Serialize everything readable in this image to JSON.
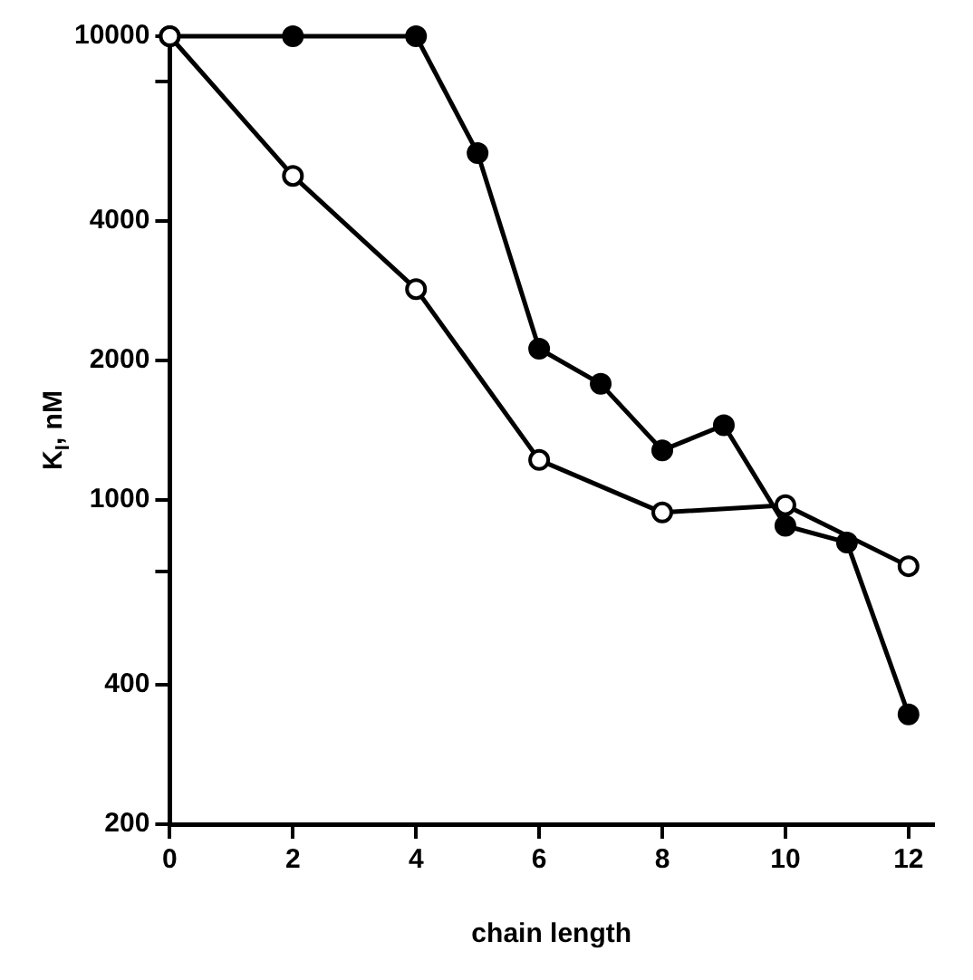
{
  "chart_data": {
    "type": "line",
    "xlabel": "chain length",
    "ylabel": "K$_{I}$, nM",
    "log": "y",
    "xlim": [
      0,
      12.4
    ],
    "xticks": [
      0,
      2,
      4,
      6,
      8,
      10,
      12
    ],
    "ylim": [
      200,
      10000
    ],
    "yticks": [
      200,
      400,
      {
        "value": 700,
        "label": null
      },
      1000,
      2000,
      4000,
      {
        "value": 8000,
        "label": null
      },
      10000
    ],
    "grid": false,
    "legend": false,
    "marker": "circle",
    "line_style": "solid",
    "series": [
      {
        "color": "#000000",
        "x": [
          0,
          2,
          4,
          6,
          8,
          10,
          12
        ],
        "values": [
          10000,
          5000,
          2850,
          1220,
          940,
          975,
          720
        ]
      },
      {
        "color": "#000000",
        "x": [
          0,
          2,
          4,
          5,
          6,
          7,
          8,
          9,
          10,
          11,
          12
        ],
        "values": [
          10000,
          10000,
          10000,
          5600,
          2120,
          1780,
          1280,
          1450,
          880,
          810,
          345
        ]
      }
    ]
  }
}
